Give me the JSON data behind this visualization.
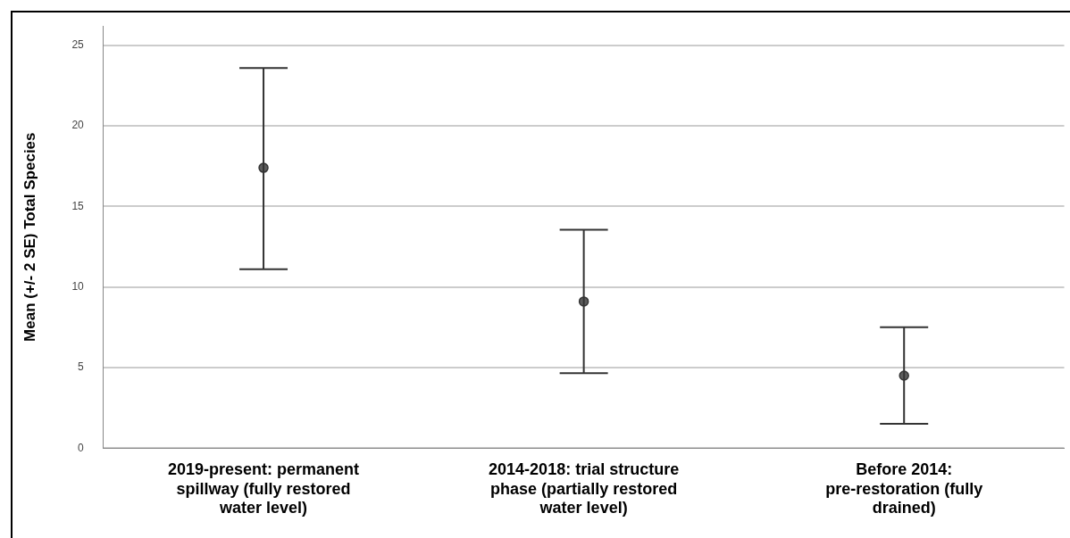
{
  "chart_data": {
    "type": "scatter",
    "ylabel": "Mean (+/- 2 SE) Total Species",
    "categories": [
      "2019-present: permanent spillway (fully restored water level)",
      "2014-2018: trial structure phase (partially restored water level)",
      "Before 2014: pre-restoration (fully drained)"
    ],
    "values": [
      17.4,
      9.1,
      4.5
    ],
    "errors": [
      [
        11.1,
        23.6
      ],
      [
        4.65,
        13.55
      ],
      [
        1.5,
        7.5
      ]
    ],
    "color": "#333333",
    "marker": "circle",
    "ylim": [
      0,
      26.2
    ],
    "yticks": [
      0,
      5,
      10,
      15,
      20,
      25
    ],
    "grid": "y"
  }
}
